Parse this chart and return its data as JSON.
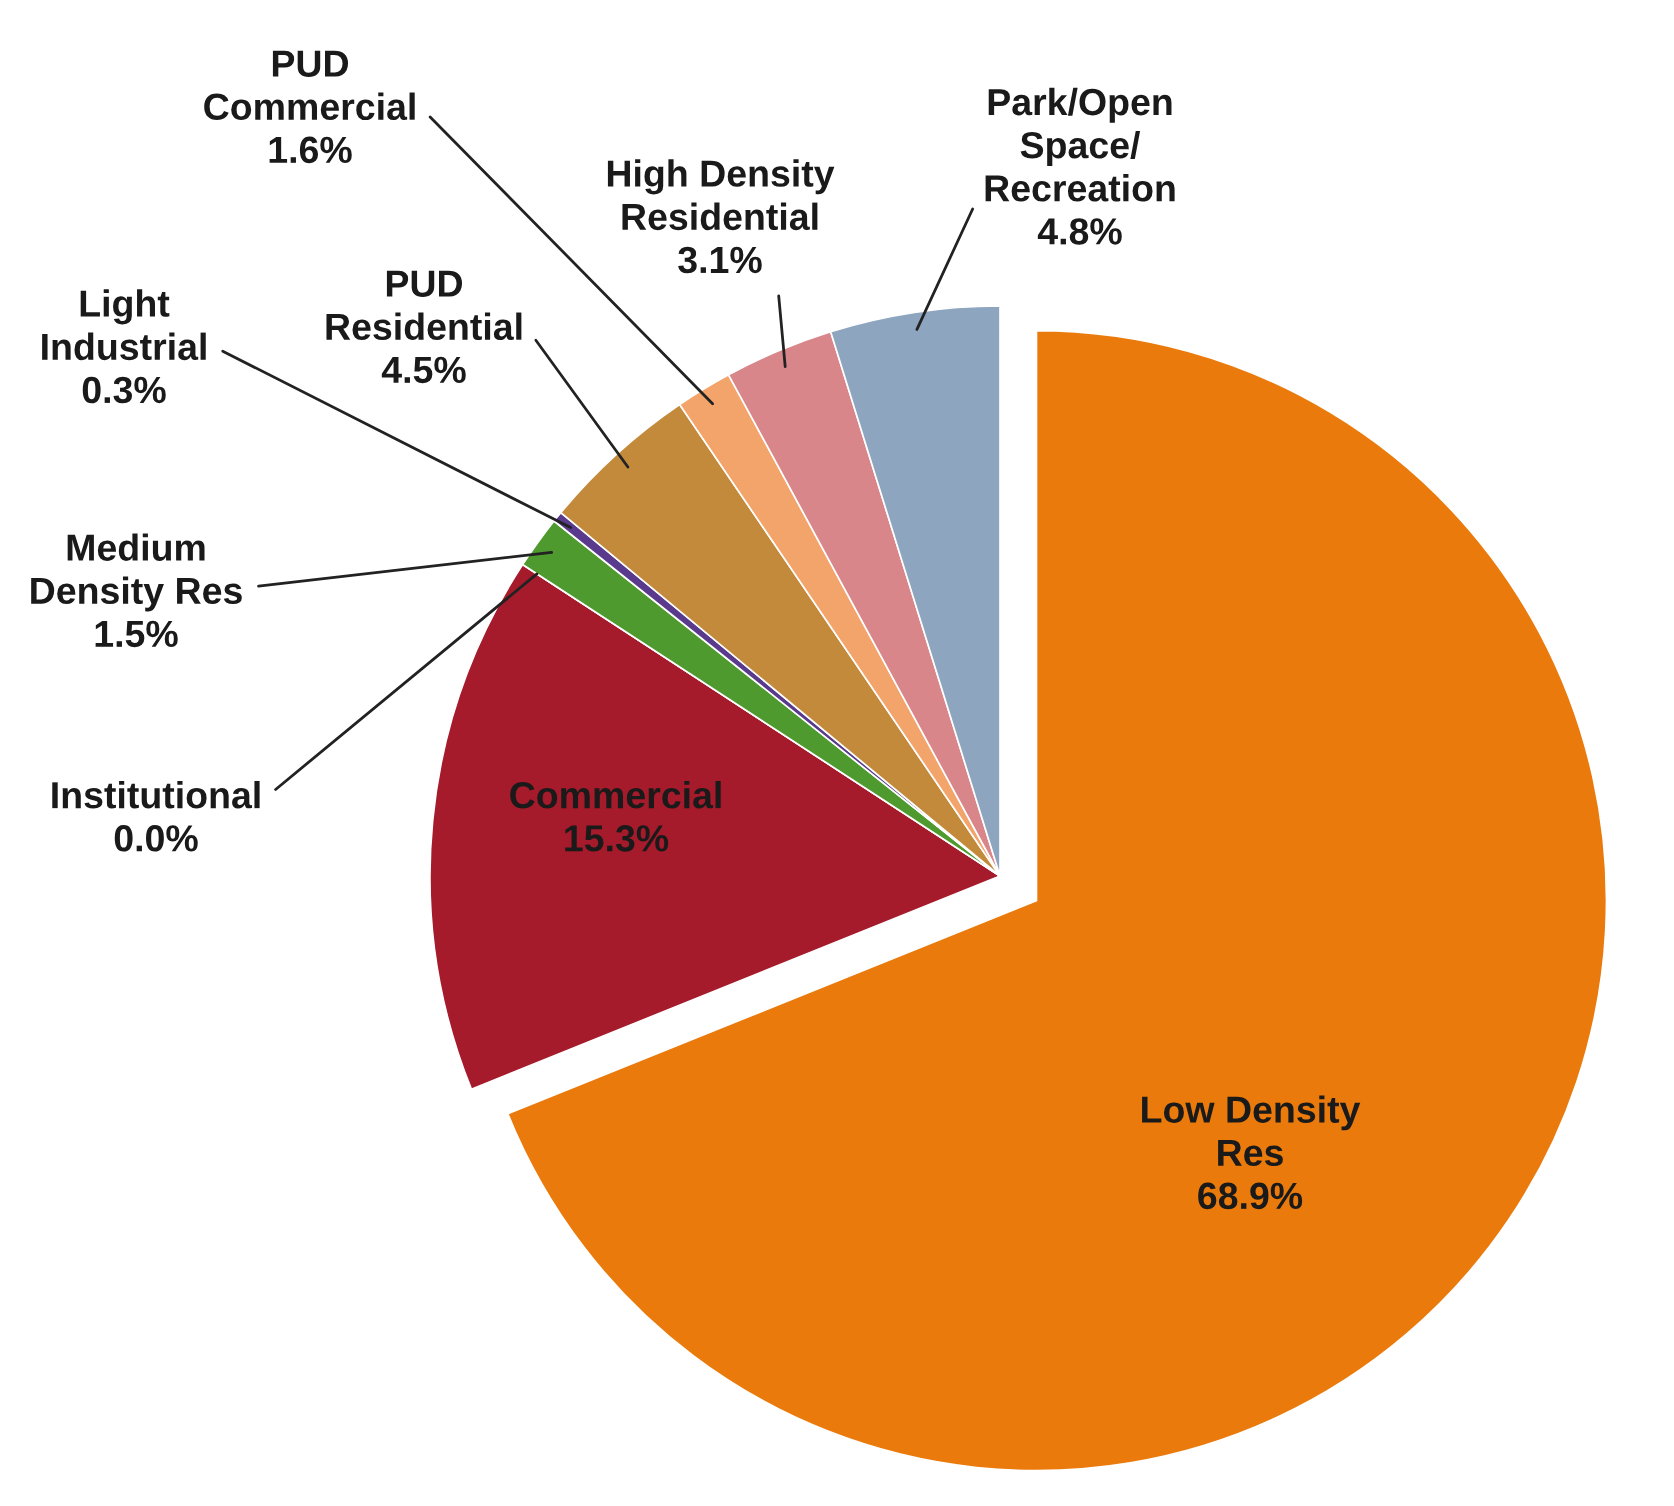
{
  "chart_data": {
    "type": "pie",
    "categories": [
      "Low Density\nRes",
      "Commercial",
      "Institutional",
      "Medium\nDensity Res",
      "Light\nIndustrial",
      "PUD\nResidential",
      "PUD\nCommercial",
      "High Density\nResidential",
      "Park/Open\nSpace/\nRecreation"
    ],
    "values": [
      68.9,
      15.3,
      0.0,
      1.5,
      0.3,
      4.5,
      1.6,
      3.1,
      4.8
    ],
    "value_labels": [
      "68.9%",
      "15.3%",
      "0.0%",
      "1.5%",
      "0.3%",
      "4.5%",
      "1.6%",
      "3.1%",
      "4.8%"
    ],
    "colors": [
      "#ea7a0c",
      "#a61b2b",
      "#7a4a9a",
      "#4f9a2f",
      "#5a3a8c",
      "#c28a3a",
      "#f3a46a",
      "#d9868a",
      "#8ea5bf"
    ],
    "legend": false
  }
}
